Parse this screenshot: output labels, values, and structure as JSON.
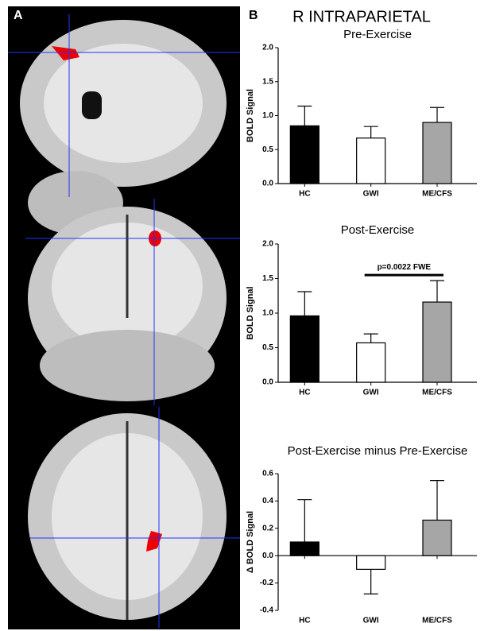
{
  "figure": {
    "title": "R INTRAPARIETAL",
    "panel_labels": [
      "A",
      "B"
    ]
  },
  "chart_data": [
    {
      "type": "bar",
      "title": "Pre-Exercise",
      "ylabel": "BOLD Signal",
      "categories": [
        "HC",
        "GWI",
        "ME/CFS"
      ],
      "values": [
        0.85,
        0.67,
        0.9
      ],
      "errors": [
        0.29,
        0.17,
        0.22
      ],
      "colors": [
        "#000000",
        "#ffffff",
        "#a6a6a6"
      ],
      "ylim": [
        0,
        2
      ],
      "yticks": [
        {
          "value": 0,
          "label": "0.0"
        },
        0.5,
        {
          "value": 1,
          "label": "1.0"
        },
        1.5,
        {
          "value": 2,
          "label": "2.0"
        }
      ]
    },
    {
      "type": "bar",
      "title": "Post-Exercise",
      "ylabel": "BOLD Signal",
      "categories": [
        "HC",
        "GWI",
        "ME/CFS"
      ],
      "values": [
        0.96,
        0.57,
        1.16
      ],
      "errors": [
        0.35,
        0.13,
        0.31
      ],
      "colors": [
        "#000000",
        "#ffffff",
        "#a6a6a6"
      ],
      "ylim": [
        0,
        2
      ],
      "yticks": [
        {
          "value": 0,
          "label": "0.0"
        },
        0.5,
        {
          "value": 1,
          "label": "1.0"
        },
        1.5,
        {
          "value": 2,
          "label": "2.0"
        }
      ],
      "annotation": "p=0.0022 FWE"
    },
    {
      "type": "bar",
      "title": "Post-Exercise minus Pre-Exercise",
      "ylabel": "Δ BOLD Signal",
      "categories": [
        "HC",
        "GWI",
        "ME/CFS"
      ],
      "values": [
        0.1,
        -0.1,
        0.26
      ],
      "errors": [
        0.31,
        0.18,
        0.29
      ],
      "colors": [
        "#000000",
        "#ffffff",
        "#a6a6a6"
      ],
      "ylim": [
        -0.4,
        0.6
      ],
      "yticks": [
        -0.4,
        -0.2,
        {
          "value": 0,
          "label": "0.0"
        },
        0.2,
        0.4,
        0.6
      ]
    }
  ]
}
